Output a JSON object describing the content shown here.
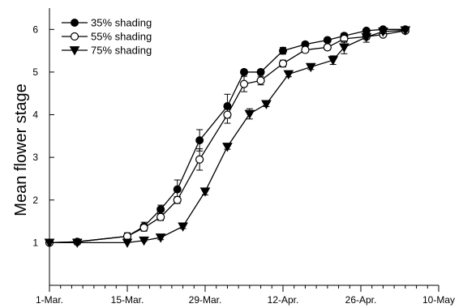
{
  "chart_data": {
    "type": "line",
    "title": "",
    "xlabel": "",
    "ylabel": "Mean flower stage",
    "x_axis": {
      "kind": "date",
      "range": [
        "1-Mar.",
        "10-May"
      ],
      "major_ticks": [
        "1-Mar.",
        "15-Mar.",
        "29-Mar.",
        "12-Apr.",
        "26-Apr.",
        "10-May"
      ],
      "minor_tick_interval_days": 2
    },
    "y_axis": {
      "range": [
        0,
        6.5
      ],
      "ticks": [
        1,
        2,
        3,
        4,
        5,
        6
      ]
    },
    "grid": false,
    "legend_position": "top-left",
    "series": [
      {
        "name": "35% shading",
        "marker": "filled-circle",
        "points": [
          {
            "date": "1-Mar.",
            "y": 1.0,
            "err": 0
          },
          {
            "date": "6-Mar.",
            "y": 1.02,
            "err": 0.02
          },
          {
            "date": "15-Mar.",
            "y": 1.15,
            "err": 0.08
          },
          {
            "date": "18-Mar.",
            "y": 1.38,
            "err": 0.1
          },
          {
            "date": "21-Mar.",
            "y": 1.78,
            "err": 0.1
          },
          {
            "date": "24-Mar.",
            "y": 2.25,
            "err": 0.22
          },
          {
            "date": "28-Mar.",
            "y": 3.4,
            "err": 0.25
          },
          {
            "date": "2-Apr.",
            "y": 4.2,
            "err": 0.28
          },
          {
            "date": "5-Apr.",
            "y": 5.0,
            "err": 0.05
          },
          {
            "date": "8-Apr.",
            "y": 5.0,
            "err": 0.05
          },
          {
            "date": "12-Apr.",
            "y": 5.5,
            "err": 0.08
          },
          {
            "date": "16-Apr.",
            "y": 5.65,
            "err": 0.06
          },
          {
            "date": "20-Apr.",
            "y": 5.75,
            "err": 0.05
          },
          {
            "date": "23-Apr.",
            "y": 5.85,
            "err": 0.06
          },
          {
            "date": "27-Apr.",
            "y": 5.97,
            "err": 0.03
          },
          {
            "date": "30-Apr.",
            "y": 6.0,
            "err": 0.02
          },
          {
            "date": "4-May",
            "y": 6.0,
            "err": 0.02
          }
        ]
      },
      {
        "name": "55% shading",
        "marker": "open-circle",
        "points": [
          {
            "date": "1-Mar.",
            "y": 1.0,
            "err": 0
          },
          {
            "date": "6-Mar.",
            "y": 1.02,
            "err": 0.02
          },
          {
            "date": "15-Mar.",
            "y": 1.15,
            "err": 0.08
          },
          {
            "date": "18-Mar.",
            "y": 1.35,
            "err": 0.08
          },
          {
            "date": "21-Mar.",
            "y": 1.6,
            "err": 0.08
          },
          {
            "date": "24-Mar.",
            "y": 2.0,
            "err": 0.08
          },
          {
            "date": "28-Mar.",
            "y": 2.95,
            "err": 0.25
          },
          {
            "date": "2-Apr.",
            "y": 4.0,
            "err": 0.2
          },
          {
            "date": "5-Apr.",
            "y": 4.72,
            "err": 0.18
          },
          {
            "date": "8-Apr.",
            "y": 4.8,
            "err": 0.1
          },
          {
            "date": "12-Apr.",
            "y": 5.2,
            "err": 0.08
          },
          {
            "date": "16-Apr.",
            "y": 5.52,
            "err": 0.06
          },
          {
            "date": "20-Apr.",
            "y": 5.58,
            "err": 0.06
          },
          {
            "date": "23-Apr.",
            "y": 5.78,
            "err": 0.08
          },
          {
            "date": "27-Apr.",
            "y": 5.83,
            "err": 0.06
          },
          {
            "date": "30-Apr.",
            "y": 5.88,
            "err": 0.05
          },
          {
            "date": "4-May",
            "y": 5.97,
            "err": 0.03
          }
        ]
      },
      {
        "name": "75% shading",
        "marker": "filled-triangle-down",
        "points": [
          {
            "date": "1-Mar.",
            "y": 1.0,
            "err": 0
          },
          {
            "date": "6-Mar.",
            "y": 1.0,
            "err": 0
          },
          {
            "date": "15-Mar.",
            "y": 1.0,
            "err": 0
          },
          {
            "date": "18-Mar.",
            "y": 1.05,
            "err": 0.02
          },
          {
            "date": "21-Mar.",
            "y": 1.12,
            "err": 0.05
          },
          {
            "date": "25-Mar.",
            "y": 1.38,
            "err": 0.05
          },
          {
            "date": "29-Mar.",
            "y": 2.2,
            "err": 0.08
          },
          {
            "date": "2-Apr.",
            "y": 3.25,
            "err": 0.06
          },
          {
            "date": "6-Apr.",
            "y": 4.02,
            "err": 0.12
          },
          {
            "date": "9-Apr.",
            "y": 4.25,
            "err": 0.06
          },
          {
            "date": "13-Apr.",
            "y": 4.95,
            "err": 0.06
          },
          {
            "date": "17-Apr.",
            "y": 5.12,
            "err": 0.06
          },
          {
            "date": "21-Apr.",
            "y": 5.28,
            "err": 0.1
          },
          {
            "date": "23-Apr.",
            "y": 5.58,
            "err": 0.15
          },
          {
            "date": "27-Apr.",
            "y": 5.82,
            "err": 0.12
          },
          {
            "date": "30-Apr.",
            "y": 5.95,
            "err": 0.05
          },
          {
            "date": "4-May",
            "y": 5.98,
            "err": 0.03
          }
        ]
      }
    ]
  }
}
